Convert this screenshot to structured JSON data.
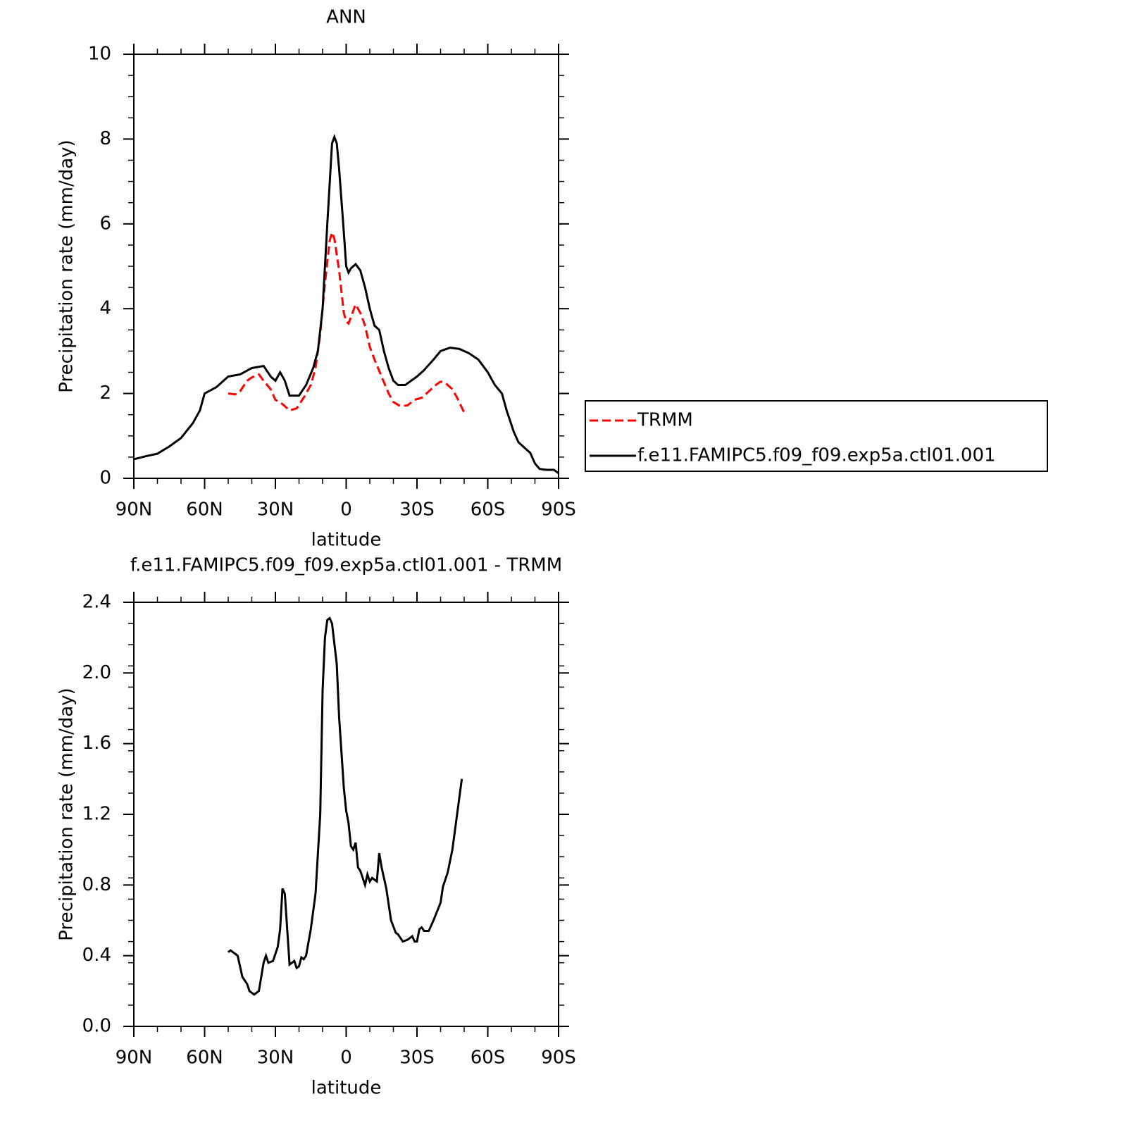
{
  "chart_data": [
    {
      "type": "line",
      "title": "ANN",
      "xlabel": "latitude",
      "ylabel": "Precipitation rate (mm/day)",
      "xlim": [
        90,
        -90
      ],
      "xticks": [
        {
          "value": 90,
          "label": "90N"
        },
        {
          "value": 60,
          "label": "60N"
        },
        {
          "value": 30,
          "label": "30N"
        },
        0,
        {
          "value": -30,
          "label": "30S"
        },
        {
          "value": -60,
          "label": "60S"
        },
        {
          "value": -90,
          "label": "90S"
        }
      ],
      "ylim": [
        0,
        10
      ],
      "yticks": [
        0,
        2,
        4,
        6,
        8,
        10
      ],
      "legend": "right",
      "series": [
        {
          "name": "TRMM",
          "color": "#ff0000",
          "linestyle": "dashed",
          "x": [
            50,
            47,
            45,
            42,
            40,
            37,
            35,
            32,
            30,
            27,
            24,
            21,
            18,
            15,
            13,
            11,
            9,
            7,
            6,
            5,
            3,
            1,
            0,
            -1,
            -2,
            -4,
            -6,
            -8,
            -10,
            -12,
            -15,
            -18,
            -20,
            -23,
            -26,
            -29,
            -32,
            -35,
            -38,
            -40,
            -42,
            -45,
            -47,
            -50
          ],
          "values": [
            2.0,
            1.98,
            2.05,
            2.3,
            2.38,
            2.45,
            2.3,
            2.1,
            1.85,
            1.75,
            1.6,
            1.65,
            1.9,
            2.2,
            2.6,
            3.4,
            4.6,
            5.6,
            5.8,
            5.65,
            4.9,
            3.9,
            3.7,
            3.65,
            3.8,
            4.1,
            3.9,
            3.6,
            3.1,
            2.8,
            2.4,
            2.0,
            1.8,
            1.7,
            1.72,
            1.85,
            1.9,
            2.05,
            2.2,
            2.28,
            2.25,
            2.1,
            1.9,
            1.55
          ]
        },
        {
          "name": "f.e11.FAMIPC5.f09_f09.exp5a.ctl01.001",
          "color": "#000000",
          "linestyle": "solid",
          "x": [
            90,
            85,
            80,
            75,
            70,
            65,
            62,
            60,
            55,
            50,
            45,
            40,
            35,
            32,
            30,
            28,
            26,
            24,
            20,
            17,
            14,
            12,
            10,
            8,
            6,
            5,
            4,
            3,
            1,
            0,
            -1,
            -2,
            -4,
            -6,
            -8,
            -10,
            -12,
            -14,
            -16,
            -18,
            -20,
            -22,
            -25,
            -30,
            -33,
            -37,
            -40,
            -44,
            -48,
            -52,
            -56,
            -60,
            -63,
            -66,
            -68,
            -71,
            -73,
            -76,
            -78,
            -80,
            -82,
            -85,
            -88,
            -90
          ],
          "values": [
            0.45,
            0.52,
            0.58,
            0.75,
            0.95,
            1.3,
            1.6,
            2.0,
            2.15,
            2.4,
            2.45,
            2.6,
            2.65,
            2.4,
            2.3,
            2.5,
            2.3,
            1.95,
            1.95,
            2.2,
            2.6,
            3.0,
            4.0,
            6.0,
            7.9,
            8.05,
            7.9,
            7.3,
            5.8,
            5.0,
            4.85,
            4.95,
            5.05,
            4.9,
            4.5,
            4.0,
            3.6,
            3.5,
            3.0,
            2.6,
            2.3,
            2.2,
            2.2,
            2.4,
            2.55,
            2.8,
            3.0,
            3.08,
            3.05,
            2.95,
            2.8,
            2.5,
            2.2,
            2.0,
            1.6,
            1.1,
            0.85,
            0.7,
            0.6,
            0.35,
            0.22,
            0.2,
            0.2,
            0.12
          ]
        }
      ]
    },
    {
      "type": "line",
      "title": "f.e11.FAMIPC5.f09_f09.exp5a.ctl01.001 - TRMM",
      "xlabel": "latitude",
      "ylabel": "Precipitation rate (mm/day)",
      "xlim": [
        90,
        -90
      ],
      "xticks": [
        {
          "value": 90,
          "label": "90N"
        },
        {
          "value": 60,
          "label": "60N"
        },
        {
          "value": 30,
          "label": "30N"
        },
        0,
        {
          "value": -30,
          "label": "30S"
        },
        {
          "value": -60,
          "label": "60S"
        },
        {
          "value": -90,
          "label": "90S"
        }
      ],
      "ylim": [
        0,
        2.4
      ],
      "yticks": [
        {
          "value": 0,
          "label": "0.0"
        },
        0.4,
        0.8,
        1.2,
        1.6,
        {
          "value": 2,
          "label": "2.0"
        },
        2.4
      ],
      "series": [
        {
          "color": "#000000",
          "linestyle": "solid",
          "x": [
            50,
            49,
            48,
            46,
            44,
            42,
            41,
            39,
            37,
            35,
            34,
            33,
            31,
            29,
            28,
            27,
            26,
            24,
            22,
            21,
            20,
            19,
            18,
            17,
            15,
            13,
            11,
            10,
            9,
            8,
            7,
            6,
            4,
            3,
            1,
            0,
            -1,
            -2,
            -3,
            -4,
            -5,
            -6,
            -8,
            -9,
            -10,
            -11,
            -13,
            -14,
            -15,
            -17,
            -19,
            -21,
            -22,
            -24,
            -26,
            -28,
            -29,
            -30,
            -31,
            -32,
            -33,
            -35,
            -37,
            -40,
            -41,
            -43,
            -45,
            -47,
            -49
          ],
          "values": [
            0.42,
            0.43,
            0.42,
            0.4,
            0.28,
            0.24,
            0.2,
            0.18,
            0.2,
            0.36,
            0.4,
            0.36,
            0.37,
            0.45,
            0.55,
            0.78,
            0.75,
            0.35,
            0.37,
            0.33,
            0.34,
            0.39,
            0.38,
            0.4,
            0.55,
            0.75,
            1.2,
            1.9,
            2.2,
            2.3,
            2.31,
            2.28,
            2.05,
            1.75,
            1.35,
            1.22,
            1.15,
            1.02,
            1.0,
            1.04,
            0.9,
            0.88,
            0.8,
            0.86,
            0.82,
            0.84,
            0.82,
            0.98,
            0.9,
            0.78,
            0.6,
            0.53,
            0.52,
            0.48,
            0.49,
            0.51,
            0.48,
            0.48,
            0.55,
            0.56,
            0.54,
            0.54,
            0.6,
            0.7,
            0.79,
            0.87,
            1.0,
            1.2,
            1.4
          ]
        }
      ]
    }
  ]
}
